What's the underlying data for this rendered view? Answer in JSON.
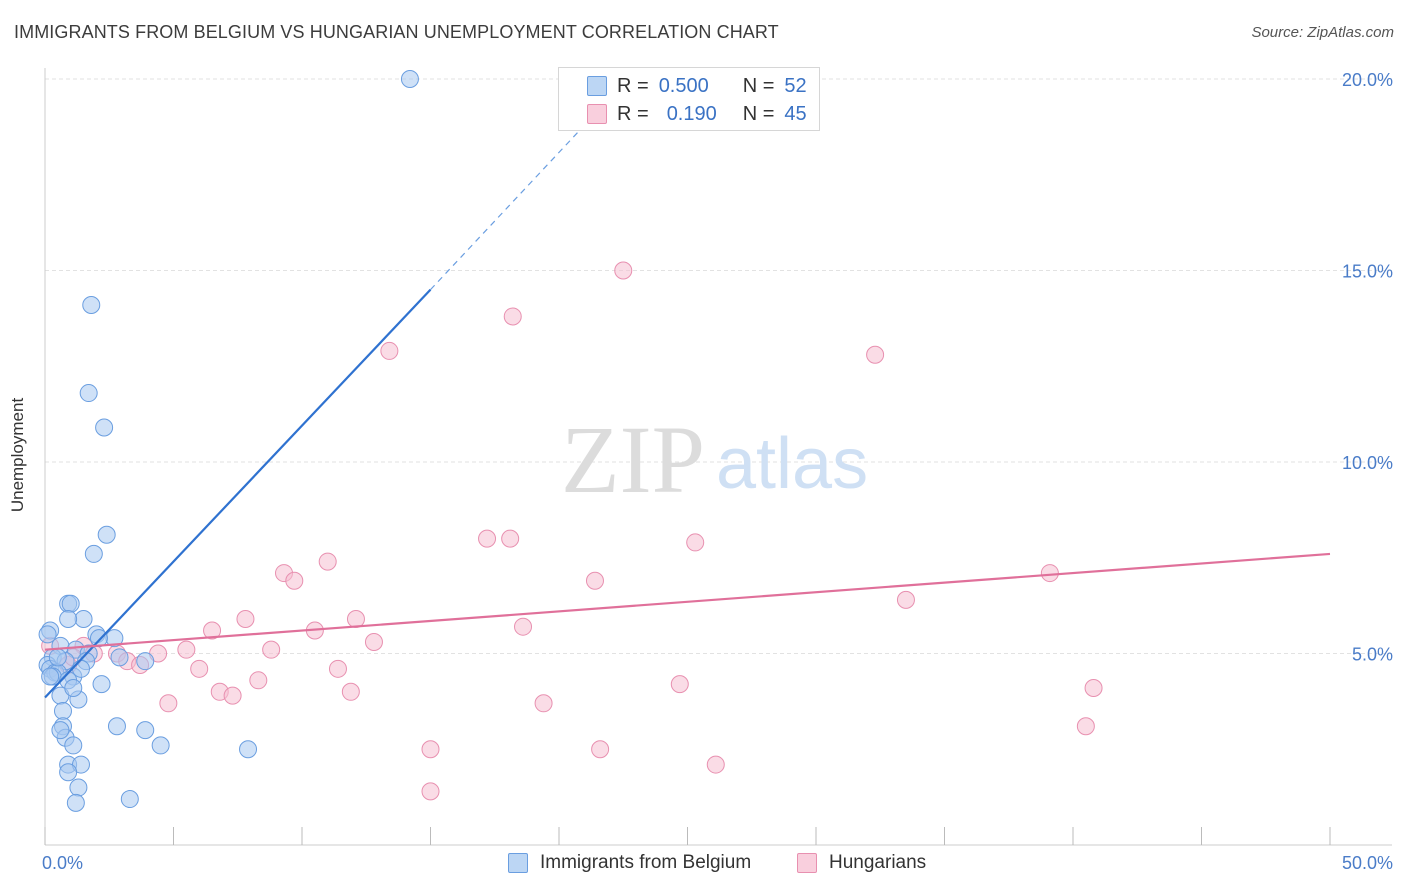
{
  "title": "IMMIGRANTS FROM BELGIUM VS HUNGARIAN UNEMPLOYMENT CORRELATION CHART",
  "source": "Source: ZipAtlas.com",
  "watermark": {
    "zip": "ZIP",
    "atlas": "atlas"
  },
  "colors": {
    "blue_fill": "#a8c8f0",
    "blue_stroke": "#6a9ee0",
    "blue_line": "#2f72d0",
    "pink_fill": "#f6c0d2",
    "pink_stroke": "#e890b0",
    "pink_line": "#e0709a",
    "tick_text": "#4a7cc8",
    "grid": "#e2e2e2"
  },
  "legend": {
    "rows": [
      {
        "r_label": "R =",
        "r_value": "0.500",
        "n_label": "N =",
        "n_value": "52",
        "series": "blue"
      },
      {
        "r_label": "R =",
        "r_value": "0.190",
        "n_label": "N =",
        "n_value": "45",
        "series": "pink"
      }
    ]
  },
  "bottom_legend": [
    {
      "label": "Immigrants from Belgium",
      "series": "blue"
    },
    {
      "label": "Hungarians",
      "series": "pink"
    }
  ],
  "chart_data": {
    "type": "scatter",
    "title": "IMMIGRANTS FROM BELGIUM VS HUNGARIAN UNEMPLOYMENT CORRELATION CHART",
    "xlabel": "",
    "ylabel": "Unemployment",
    "xlim": [
      0,
      50
    ],
    "ylim": [
      0,
      20.5
    ],
    "x_tick_labels": [
      "0.0%",
      "50.0%"
    ],
    "y_ticks": [
      5,
      10,
      15,
      20
    ],
    "y_tick_labels": [
      "5.0%",
      "10.0%",
      "15.0%",
      "20.0%"
    ],
    "grid": true,
    "series": [
      {
        "name": "Immigrants from Belgium",
        "color": "blue",
        "points": [
          [
            14.2,
            20.0
          ],
          [
            1.8,
            14.1
          ],
          [
            1.7,
            11.8
          ],
          [
            2.3,
            10.9
          ],
          [
            2.4,
            8.1
          ],
          [
            1.9,
            7.6
          ],
          [
            0.9,
            6.3
          ],
          [
            1.0,
            6.3
          ],
          [
            1.5,
            5.9
          ],
          [
            0.9,
            5.9
          ],
          [
            0.2,
            5.6
          ],
          [
            2.0,
            5.5
          ],
          [
            2.7,
            5.4
          ],
          [
            0.6,
            5.2
          ],
          [
            1.2,
            5.1
          ],
          [
            1.7,
            5.0
          ],
          [
            2.9,
            4.9
          ],
          [
            0.3,
            4.9
          ],
          [
            0.8,
            4.8
          ],
          [
            1.6,
            4.8
          ],
          [
            3.9,
            4.8
          ],
          [
            0.1,
            4.7
          ],
          [
            0.2,
            4.6
          ],
          [
            0.4,
            4.5
          ],
          [
            0.5,
            4.5
          ],
          [
            0.3,
            4.4
          ],
          [
            1.1,
            4.4
          ],
          [
            0.9,
            4.3
          ],
          [
            2.2,
            4.2
          ],
          [
            0.6,
            3.9
          ],
          [
            1.3,
            3.8
          ],
          [
            0.7,
            3.5
          ],
          [
            2.8,
            3.1
          ],
          [
            0.7,
            3.1
          ],
          [
            3.9,
            3.0
          ],
          [
            0.8,
            2.8
          ],
          [
            0.6,
            3.0
          ],
          [
            1.1,
            2.6
          ],
          [
            4.5,
            2.6
          ],
          [
            7.9,
            2.5
          ],
          [
            0.9,
            2.1
          ],
          [
            1.4,
            2.1
          ],
          [
            0.9,
            1.9
          ],
          [
            1.3,
            1.5
          ],
          [
            3.3,
            1.2
          ],
          [
            1.2,
            1.1
          ],
          [
            0.1,
            5.5
          ],
          [
            0.5,
            4.9
          ],
          [
            1.4,
            4.6
          ],
          [
            0.2,
            4.4
          ],
          [
            2.1,
            5.4
          ],
          [
            1.1,
            4.1
          ]
        ],
        "trendline": {
          "x0": 0.0,
          "y0": 3.85,
          "x1": 15.0,
          "y1": 14.5,
          "dashed_to_x": 21.0,
          "dashed_to_y": 18.8
        }
      },
      {
        "name": "Hungarians",
        "color": "pink",
        "points": [
          [
            22.5,
            15.0
          ],
          [
            18.2,
            13.8
          ],
          [
            13.4,
            12.9
          ],
          [
            32.3,
            12.8
          ],
          [
            17.2,
            8.0
          ],
          [
            18.1,
            8.0
          ],
          [
            25.3,
            7.9
          ],
          [
            11.0,
            7.4
          ],
          [
            9.3,
            7.1
          ],
          [
            9.7,
            6.9
          ],
          [
            21.4,
            6.9
          ],
          [
            39.1,
            7.1
          ],
          [
            33.5,
            6.4
          ],
          [
            7.8,
            5.9
          ],
          [
            12.1,
            5.9
          ],
          [
            18.6,
            5.7
          ],
          [
            6.5,
            5.6
          ],
          [
            10.5,
            5.6
          ],
          [
            12.8,
            5.3
          ],
          [
            1.5,
            5.2
          ],
          [
            5.5,
            5.1
          ],
          [
            8.8,
            5.1
          ],
          [
            4.4,
            5.0
          ],
          [
            2.8,
            5.0
          ],
          [
            1.9,
            5.0
          ],
          [
            3.2,
            4.8
          ],
          [
            0.9,
            4.7
          ],
          [
            3.7,
            4.7
          ],
          [
            6.0,
            4.6
          ],
          [
            11.4,
            4.6
          ],
          [
            8.3,
            4.3
          ],
          [
            24.7,
            4.2
          ],
          [
            40.8,
            4.1
          ],
          [
            6.8,
            4.0
          ],
          [
            11.9,
            4.0
          ],
          [
            7.3,
            3.9
          ],
          [
            19.4,
            3.7
          ],
          [
            4.8,
            3.7
          ],
          [
            40.5,
            3.1
          ],
          [
            15.0,
            2.5
          ],
          [
            21.6,
            2.5
          ],
          [
            26.1,
            2.1
          ],
          [
            15.0,
            1.4
          ],
          [
            0.2,
            5.2
          ],
          [
            1.1,
            4.9
          ]
        ],
        "trendline": {
          "x0": 0.0,
          "y0": 5.1,
          "x1": 50.0,
          "y1": 7.6
        }
      }
    ]
  }
}
